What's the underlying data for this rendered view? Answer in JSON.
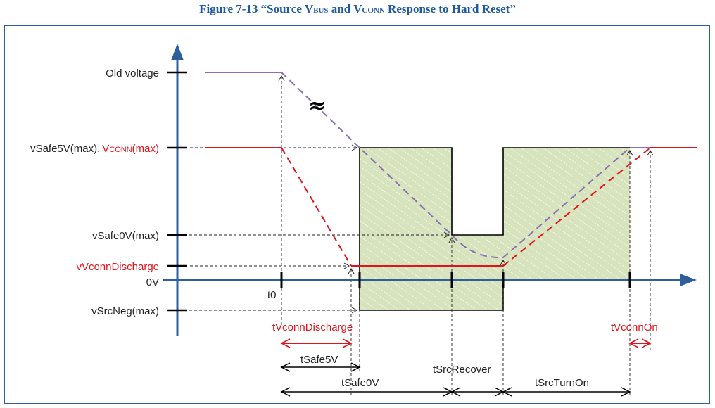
{
  "figure": {
    "title": "Figure 7-13 “Source V",
    "title_vbus_sub": "BUS",
    "title_mid": " and V",
    "title_vconn_sub": "CONN",
    "title_end": " Response to Hard Reset”"
  },
  "y_labels": {
    "old_voltage": "Old voltage",
    "vsafe5v": "vSafe5V(max),",
    "vconn_max_v": "V",
    "vconn_max_sub": "CONN",
    "vconn_max_end": "(max)",
    "vsafe0v": "vSafe0V(max)",
    "vvconn_discharge": "vVconnDischarge",
    "zero_v": "0V",
    "vsrcneg": "vSrcNeg(max)"
  },
  "x_labels": {
    "t0": "t0",
    "tvconn_discharge": "tVconnDischarge",
    "tvconn_on": "tVconnOn",
    "tsafe5v": "tSafe5V",
    "tsrc_recover": "tSrcRecover",
    "tsafe0v": "tSafe0V",
    "tsrc_turn_on": "tSrcTurnOn"
  },
  "approx_symbol": "≈",
  "colors": {
    "axis": "#2e5f9b",
    "vbus": "#8a6fb5",
    "vconn": "#e4131b",
    "envelope_fill": "#d6e3bc",
    "title": "#1f5a9c"
  }
}
